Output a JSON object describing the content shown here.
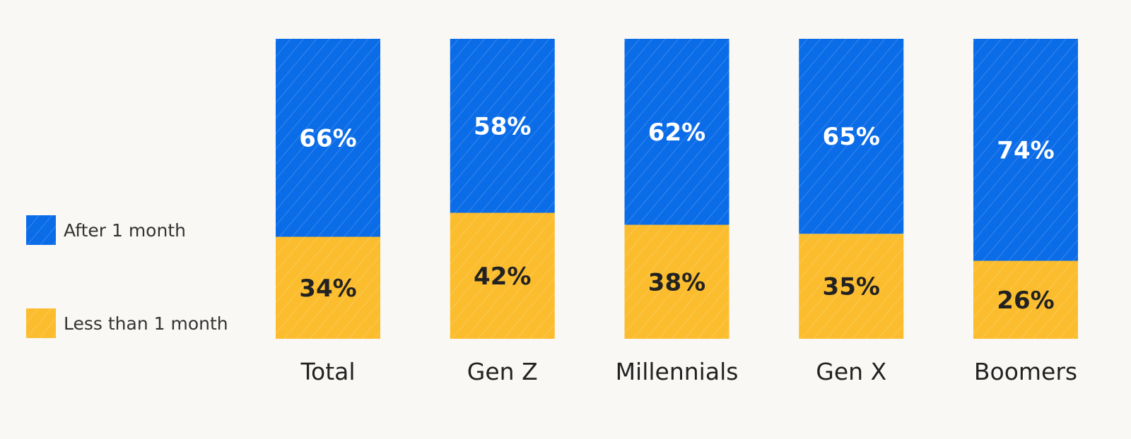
{
  "chart_data": {
    "type": "bar",
    "stacked": true,
    "orientation": "vertical",
    "categories": [
      "Total",
      "Gen Z",
      "Millennials",
      "Gen X",
      "Boomers"
    ],
    "series": [
      {
        "name": "Less than 1 month",
        "values": [
          34,
          42,
          38,
          35,
          26
        ],
        "color": "#fbbd2e",
        "label_color": "#222222"
      },
      {
        "name": "After 1 month",
        "values": [
          66,
          58,
          62,
          65,
          74
        ],
        "color": "#0b6ce8",
        "label_color": "#ffffff"
      }
    ],
    "value_suffix": "%",
    "ylim": [
      0,
      100
    ],
    "grid": false,
    "legend": {
      "placement": "left",
      "order": [
        "After 1 month",
        "Less than 1 month"
      ]
    },
    "background": "#f9f8f5"
  }
}
